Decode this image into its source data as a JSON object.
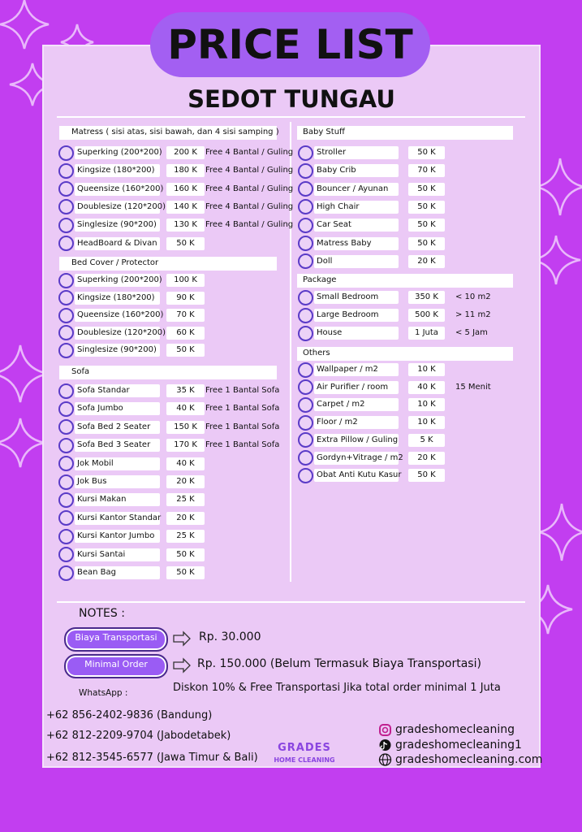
{
  "header": {
    "title": "PRICE LIST",
    "subtitle": "SEDOT TUNGAU"
  },
  "left_sections": [
    {
      "header": "Matress ( sisi atas, sisi bawah, dan 4 sisi samping )",
      "items": [
        {
          "name": "Superking (200*200)",
          "price": "200 K",
          "note": "Free 4 Bantal / Guling"
        },
        {
          "name": "Kingsize (180*200)",
          "price": "180 K",
          "note": "Free 4 Bantal / Guling"
        },
        {
          "name": "Queensize (160*200)",
          "price": "160 K",
          "note": "Free 4 Bantal / Guling"
        },
        {
          "name": "Doublesize (120*200)",
          "price": "140 K",
          "note": "Free 4 Bantal / Guling"
        },
        {
          "name": "Singlesize (90*200)",
          "price": "130 K",
          "note": "Free 4 Bantal / Guling"
        },
        {
          "name": "HeadBoard & Divan",
          "price": "50 K"
        }
      ]
    },
    {
      "header": "Bed Cover / Protector",
      "items": [
        {
          "name": "Superking (200*200)",
          "price": "100 K"
        },
        {
          "name": "Kingsize (180*200)",
          "price": "90 K"
        },
        {
          "name": "Queensize (160*200)",
          "price": "70 K"
        },
        {
          "name": "Doublesize (120*200)",
          "price": "60 K"
        },
        {
          "name": "Singlesize (90*200)",
          "price": "50 K"
        }
      ]
    },
    {
      "header": "Sofa",
      "items": [
        {
          "name": "Sofa Standar",
          "price": "35 K",
          "note": "Free 1 Bantal Sofa"
        },
        {
          "name": "Sofa Jumbo",
          "price": "40 K",
          "note": "Free 1 Bantal Sofa"
        },
        {
          "name": "Sofa Bed 2 Seater",
          "price": "150 K",
          "note": "Free 1 Bantal Sofa"
        },
        {
          "name": "Sofa Bed 3 Seater",
          "price": "170 K",
          "note": "Free 1 Bantal Sofa"
        },
        {
          "name": "Jok Mobil",
          "price": "40 K"
        },
        {
          "name": "Jok Bus",
          "price": "20 K"
        },
        {
          "name": "Kursi Makan",
          "price": "25 K"
        },
        {
          "name": "Kursi Kantor Standar",
          "price": "20 K"
        },
        {
          "name": "Kursi Kantor Jumbo",
          "price": "25 K"
        },
        {
          "name": "Kursi Santai",
          "price": "50 K"
        },
        {
          "name": "Bean Bag",
          "price": "50 K"
        }
      ]
    }
  ],
  "right_sections": [
    {
      "header": "Baby Stuff",
      "items": [
        {
          "name": "Stroller",
          "price": "50 K"
        },
        {
          "name": "Baby Crib",
          "price": "70 K"
        },
        {
          "name": "Bouncer / Ayunan",
          "price": "50 K"
        },
        {
          "name": "High Chair",
          "price": "50 K"
        },
        {
          "name": "Car Seat",
          "price": "50 K"
        },
        {
          "name": "Matress Baby",
          "price": "50 K"
        },
        {
          "name": "Doll",
          "price": "20 K"
        }
      ]
    },
    {
      "header": "Package",
      "items": [
        {
          "name": "Small Bedroom",
          "price": "350 K",
          "note": "< 10 m2"
        },
        {
          "name": "Large Bedroom",
          "price": "500 K",
          "note": "> 11 m2"
        },
        {
          "name": "House",
          "price": "1 Juta",
          "note": "< 5 Jam"
        }
      ]
    },
    {
      "header": "Others",
      "items": [
        {
          "name": "Wallpaper / m2",
          "price": "10 K"
        },
        {
          "name": "Air Purifier / room",
          "price": "40 K",
          "note": "15 Menit"
        },
        {
          "name": "Carpet / m2",
          "price": "10 K"
        },
        {
          "name": "Floor / m2",
          "price": "10 K"
        },
        {
          "name": "Extra Pillow / Guling",
          "price": "5 K"
        },
        {
          "name": "Gordyn+Vitrage / m2",
          "price": "20 K"
        },
        {
          "name": "Obat Anti Kutu Kasur",
          "price": "50 K"
        }
      ]
    }
  ],
  "notes": {
    "title": "NOTES :",
    "items": [
      {
        "label": "Biaya Transportasi",
        "value": "Rp. 30.000"
      },
      {
        "label": "Minimal Order",
        "value": "Rp. 150.000 (Belum Termasuk Biaya Transportasi)"
      }
    ],
    "discount": "Diskon 10% & Free Transportasi Jika total order minimal 1 Juta"
  },
  "contact": {
    "whatsapp_label": "WhatsApp :",
    "phones": [
      "+62 856-2402-9836 (Bandung)",
      "+62 812-2209-9704 (Jabodetabek)",
      "+62 812-3545-6577 (Jawa Timur & Bali)"
    ],
    "logo": {
      "name": "GRADES",
      "tagline": "HOME CLEANING"
    },
    "socials": {
      "instagram": "gradeshomecleaning",
      "tiktok": "gradeshomecleaning1",
      "website": "gradeshomecleaning.com"
    }
  }
}
